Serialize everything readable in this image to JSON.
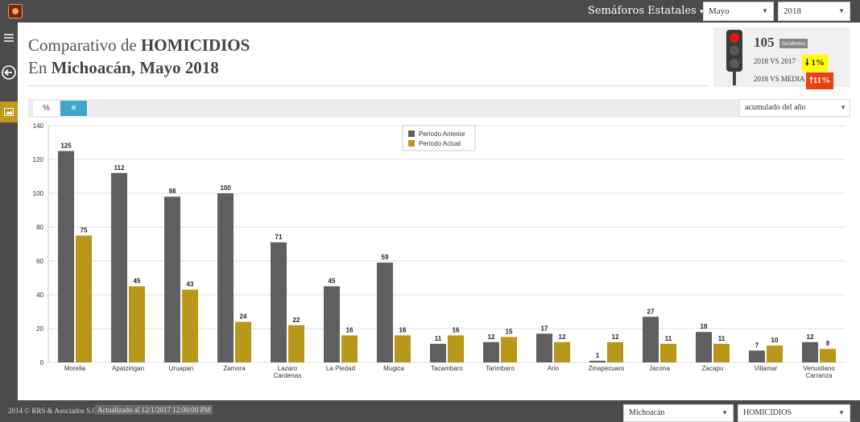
{
  "header": {
    "menu_title": "Semáforos Estatales",
    "month_select": "Mayo",
    "year_select": "2018"
  },
  "title": {
    "line1_prefix": "Comparativo de ",
    "line1_bold": "HOMICIDIOS",
    "line2_prefix": "En ",
    "line2_bold": "Michoacán, Mayo 2018"
  },
  "kpi": {
    "value": "105",
    "badge": "Incidentes",
    "row1_label": "2018 VS 2017",
    "row1_value": "1%",
    "row1_direction": "down",
    "row1_color": "#ffff00",
    "row2_label": "2018 VS MEDIA",
    "row2_value": "11%",
    "row2_direction": "up",
    "row2_color": "#e8430f"
  },
  "toolbar": {
    "percent_label": "%",
    "number_label": "#",
    "active": "#",
    "accumulation_select": "acumulado del año"
  },
  "chart_data": {
    "type": "bar",
    "categories": [
      "Morelia",
      "Apatzingan",
      "Uruapan",
      "Zamora",
      "Lazaro Cardenas",
      "La Piedad",
      "Mugica",
      "Tacambaro",
      "Tarimbaro",
      "Ario",
      "Zinapecuaro",
      "Jacona",
      "Zacapu",
      "Villamar",
      "Venustiano Carranza"
    ],
    "series": [
      {
        "name": "Período Anterior",
        "color": "#5f5f5f",
        "values": [
          125,
          112,
          98,
          100,
          71,
          45,
          59,
          11,
          12,
          17,
          1,
          27,
          18,
          7,
          12
        ]
      },
      {
        "name": "Período Actual",
        "color": "#b8971a",
        "values": [
          75,
          45,
          43,
          24,
          22,
          16,
          16,
          16,
          15,
          12,
          12,
          11,
          11,
          10,
          8
        ]
      }
    ],
    "ylim": [
      0,
      140
    ],
    "yticks": [
      0,
      20,
      40,
      60,
      80,
      100,
      120,
      140
    ],
    "grid": true,
    "legend_position": "top-center"
  },
  "footer": {
    "copyright": "2014 © RRS & Asociados S.C.",
    "updated": "Actualizado al 12/1/2017 12:00:00 PM",
    "state_select": "Michoacán",
    "crime_select": "HOMICIDIOS"
  },
  "icons": {
    "menu": "hamburger-icon",
    "back": "arrow-left-circle-icon",
    "image": "image-icon"
  }
}
